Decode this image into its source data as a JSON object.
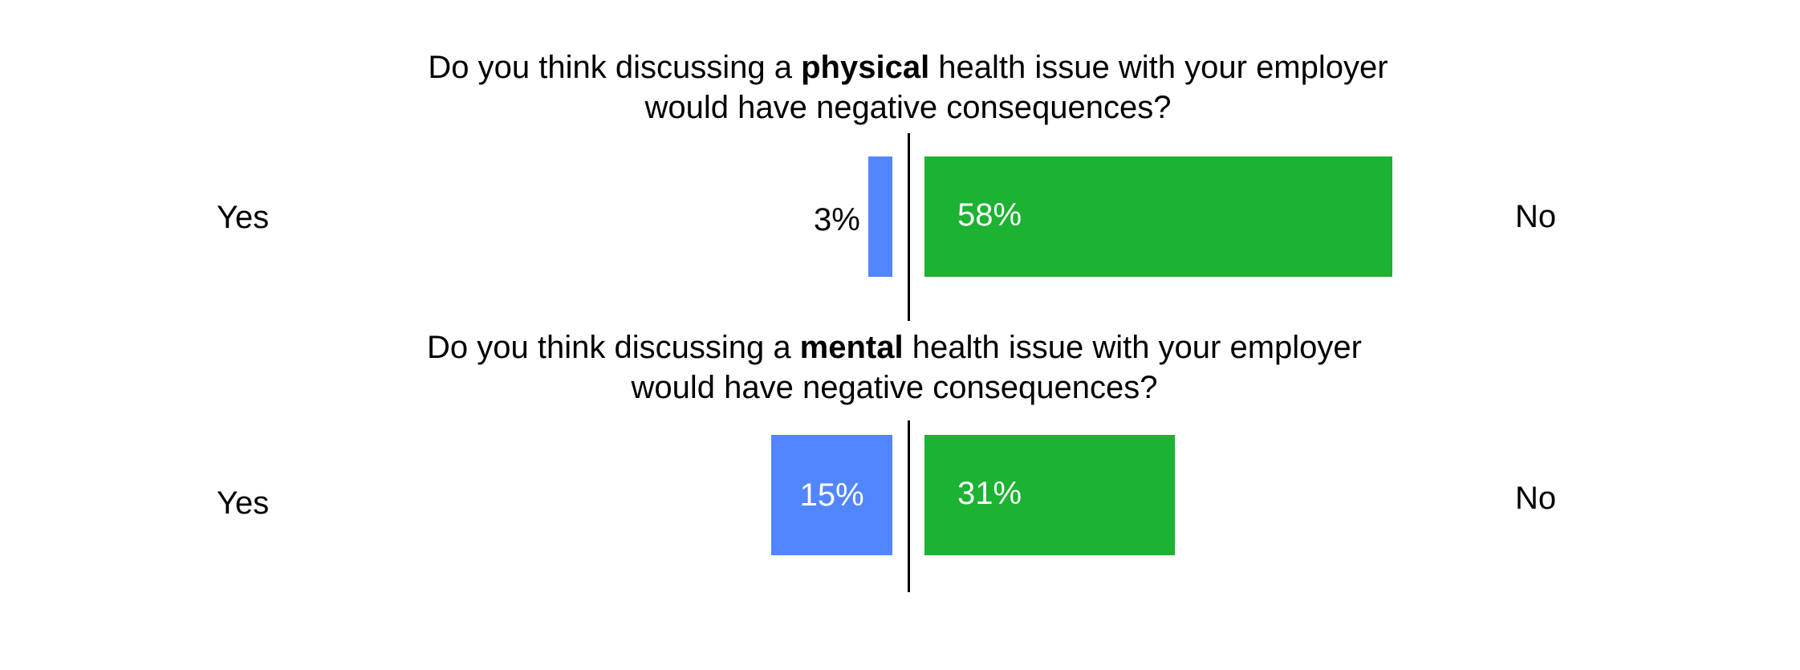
{
  "colors": {
    "yes": "#5286FF",
    "no": "#1CB232",
    "axis": "#000000",
    "inside_text": "#ffffff"
  },
  "chart_data": [
    {
      "type": "bar",
      "orientation": "diverging-horizontal",
      "title": {
        "before": "Do you think discussing a ",
        "emphasis": "physical",
        "after": " health issue with your employer",
        "line2": "would have negative consequences?"
      },
      "left_label": "Yes",
      "right_label": "No",
      "values": {
        "Yes": 3,
        "No": 58
      },
      "value_labels": {
        "Yes": "3%",
        "No": "58%"
      }
    },
    {
      "type": "bar",
      "orientation": "diverging-horizontal",
      "title": {
        "before": "Do you think discussing a ",
        "emphasis": "mental",
        "after": " health issue with your employer",
        "line2": "would have negative consequences?"
      },
      "left_label": "Yes",
      "right_label": "No",
      "values": {
        "Yes": 15,
        "No": 31
      },
      "value_labels": {
        "Yes": "15%",
        "No": "31%"
      }
    }
  ]
}
